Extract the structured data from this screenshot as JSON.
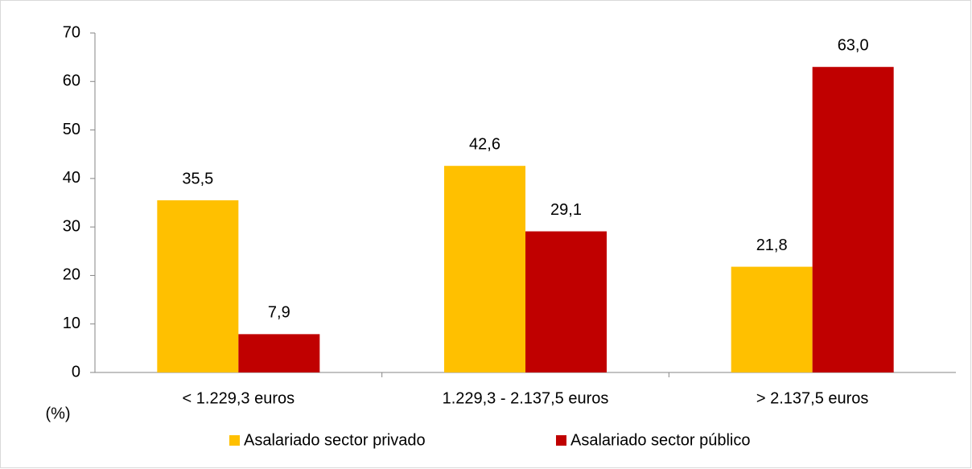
{
  "chart_data": {
    "type": "bar",
    "categories": [
      "< 1.229,3 euros",
      "1.229,3 - 2.137,5 euros",
      "> 2.137,5 euros"
    ],
    "series": [
      {
        "name": "Asalariado sector privado",
        "color": "#ffc000",
        "values": [
          35.5,
          42.6,
          21.8
        ],
        "value_labels": [
          "35,5",
          "42,6",
          "21,8"
        ]
      },
      {
        "name": "Asalariado sector público",
        "color": "#c00000",
        "values": [
          7.9,
          29.1,
          63.0
        ],
        "value_labels": [
          "7,9",
          "29,1",
          "63,0"
        ]
      }
    ],
    "y_label": "(%)",
    "ylim": [
      0,
      70
    ],
    "yticks": [
      0,
      10,
      20,
      30,
      40,
      50,
      60,
      70
    ],
    "grid": false,
    "legend": "bottom"
  }
}
